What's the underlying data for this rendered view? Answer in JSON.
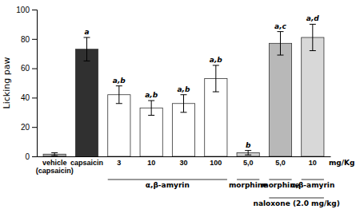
{
  "chart_data": {
    "type": "bar",
    "ylabel": "Licking paw",
    "categories": [
      "vehicle\n(capsaicin)",
      "capsaicin",
      "3",
      "10",
      "30",
      "100",
      "5,0",
      "5,0",
      "10"
    ],
    "values": [
      1.5,
      73,
      42,
      33,
      36,
      53,
      2.5,
      77,
      81
    ],
    "errors": [
      1.0,
      8,
      6,
      5,
      6,
      9,
      1.5,
      8,
      9
    ],
    "bar_labels": [
      null,
      "a",
      "a,b",
      "a,b",
      "a,b",
      "a,b",
      "b",
      "a,c",
      "a,d"
    ],
    "colors": [
      "#b0b0b0",
      "#303030",
      "white",
      "white",
      "white",
      "white",
      "#d0d0d0",
      "#b8b8b8",
      "#d8d8d8"
    ],
    "unit_label": "mg/Kg",
    "groups": [
      {
        "label": "α,β-amyrin",
        "from": 2,
        "to": 5
      },
      {
        "label": "morphine",
        "from": 6,
        "to": 6
      },
      {
        "label": "morphine",
        "from": 7,
        "to": 7
      },
      {
        "label": "α,β-amyrin",
        "from": 8,
        "to": 8
      }
    ],
    "cotreatment_groups": [
      {
        "label": "naloxone (2.0 mg/kg)",
        "from": 7,
        "to": 8
      }
    ],
    "ylim": [
      0,
      100
    ],
    "yticks": [
      0,
      20,
      40,
      60,
      80,
      100
    ]
  }
}
